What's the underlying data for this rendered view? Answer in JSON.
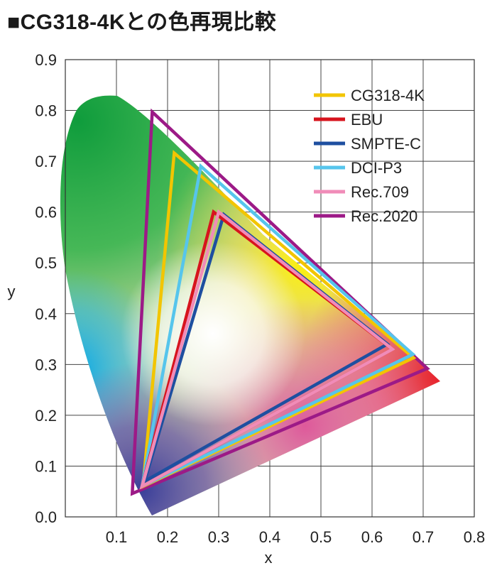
{
  "title": "■CG318-4Kとの色再現比較",
  "chart_data": {
    "type": "line",
    "title": "■CG318-4Kとの色再現比較",
    "xlabel": "x",
    "ylabel": "y",
    "xlim": [
      0,
      0.8
    ],
    "ylim": [
      0,
      0.9
    ],
    "x_ticks": [
      "0.1",
      "0.2",
      "0.3",
      "0.4",
      "0.5",
      "0.6",
      "0.7",
      "0.8"
    ],
    "y_ticks": [
      "0.0",
      "0.1",
      "0.2",
      "0.3",
      "0.4",
      "0.5",
      "0.6",
      "0.7",
      "0.8",
      "0.9"
    ],
    "grid": true,
    "legend_position": "top-right",
    "series": [
      {
        "name": "CG318-4K",
        "color": "#f2c500",
        "points": [
          [
            0.681,
            0.313
          ],
          [
            0.213,
            0.716
          ],
          [
            0.152,
            0.06
          ]
        ]
      },
      {
        "name": "EBU",
        "color": "#d7141e",
        "points": [
          [
            0.64,
            0.33
          ],
          [
            0.29,
            0.6
          ],
          [
            0.15,
            0.06
          ]
        ]
      },
      {
        "name": "SMPTE-C",
        "color": "#1e4fa0",
        "points": [
          [
            0.63,
            0.34
          ],
          [
            0.31,
            0.595
          ],
          [
            0.155,
            0.07
          ]
        ]
      },
      {
        "name": "DCI-P3",
        "color": "#56c5ec",
        "points": [
          [
            0.68,
            0.32
          ],
          [
            0.265,
            0.69
          ],
          [
            0.15,
            0.06
          ]
        ]
      },
      {
        "name": "Rec.709",
        "color": "#f08cb8",
        "points": [
          [
            0.64,
            0.33
          ],
          [
            0.3,
            0.6
          ],
          [
            0.15,
            0.06
          ]
        ]
      },
      {
        "name": "Rec.2020",
        "color": "#9c1a87",
        "points": [
          [
            0.708,
            0.292
          ],
          [
            0.17,
            0.797
          ],
          [
            0.131,
            0.046
          ]
        ]
      }
    ]
  }
}
